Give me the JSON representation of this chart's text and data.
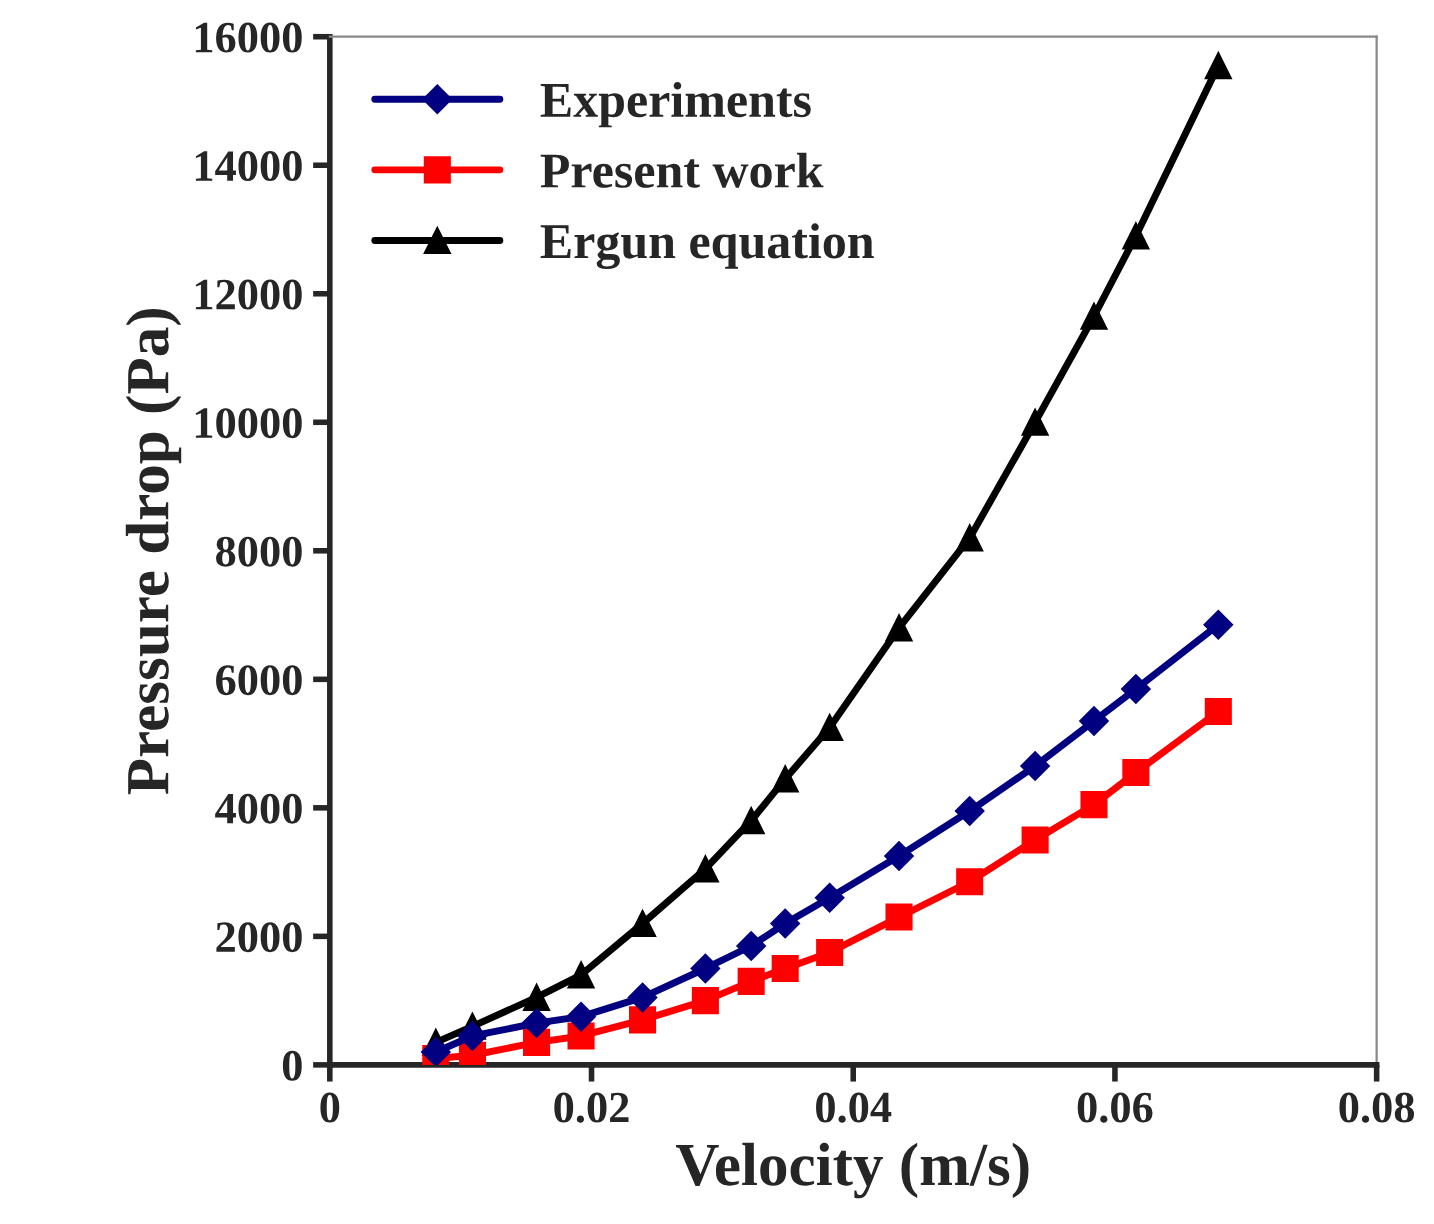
{
  "chart_data": {
    "type": "line",
    "xlabel": "Velocity (m/s)",
    "ylabel": "Pressure drop (Pa)",
    "x": [
      0.0081,
      0.0109,
      0.0158,
      0.0192,
      0.0239,
      0.0287,
      0.0322,
      0.0348,
      0.0382,
      0.0435,
      0.0489,
      0.0539,
      0.0584,
      0.0616,
      0.0679
    ],
    "series": [
      {
        "name": "Experiments",
        "color": "#000080",
        "marker": "diamond",
        "values": [
          200,
          450,
          650,
          750,
          1050,
          1500,
          1850,
          2200,
          2600,
          3250,
          3950,
          4650,
          5350,
          5850,
          6850
        ]
      },
      {
        "name": "Present work",
        "color": "#ff0000",
        "marker": "square",
        "values": [
          100,
          150,
          350,
          450,
          700,
          1000,
          1300,
          1500,
          1750,
          2300,
          2850,
          3500,
          4050,
          4550,
          5500
        ]
      },
      {
        "name": "Ergun equation",
        "color": "#000000",
        "marker": "triangle",
        "values": [
          350,
          600,
          1050,
          1400,
          2200,
          3050,
          3800,
          4450,
          5250,
          6800,
          8200,
          10000,
          11650,
          12900,
          15550
        ]
      }
    ],
    "xlim": [
      0,
      0.08
    ],
    "xticks": [
      0,
      0.02,
      0.04,
      0.06,
      0.08
    ],
    "ylim": [
      0,
      16000
    ],
    "yticks": [
      0,
      2000,
      4000,
      6000,
      8000,
      10000,
      12000,
      14000,
      16000
    ],
    "grid": false,
    "legend": "top left",
    "line_style": "solid"
  }
}
